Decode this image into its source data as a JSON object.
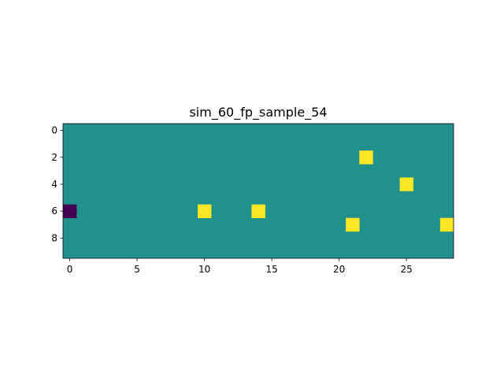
{
  "chart_data": {
    "type": "heatmap",
    "title": "sim_60_fp_sample_54",
    "xlabel": "",
    "ylabel": "",
    "n_rows": 10,
    "n_cols": 29,
    "x_ticks": [
      0,
      5,
      10,
      15,
      20,
      25
    ],
    "y_ticks": [
      0,
      2,
      4,
      6,
      8
    ],
    "x_tick_labels": [
      "0",
      "5",
      "10",
      "15",
      "20",
      "25"
    ],
    "y_tick_labels": [
      "0",
      "2",
      "4",
      "6",
      "8"
    ],
    "colormap": "viridis",
    "colors": {
      "low": "#440154",
      "mid": "#21918c",
      "high": "#fde725"
    },
    "background_level": "mid",
    "cells": [
      {
        "row": 2,
        "col": 22,
        "level": "high"
      },
      {
        "row": 4,
        "col": 25,
        "level": "high"
      },
      {
        "row": 6,
        "col": 0,
        "level": "low"
      },
      {
        "row": 6,
        "col": 10,
        "level": "high"
      },
      {
        "row": 6,
        "col": 14,
        "level": "high"
      },
      {
        "row": 7,
        "col": 21,
        "level": "high"
      },
      {
        "row": 7,
        "col": 28,
        "level": "high"
      }
    ],
    "grid": false,
    "legend": false
  }
}
